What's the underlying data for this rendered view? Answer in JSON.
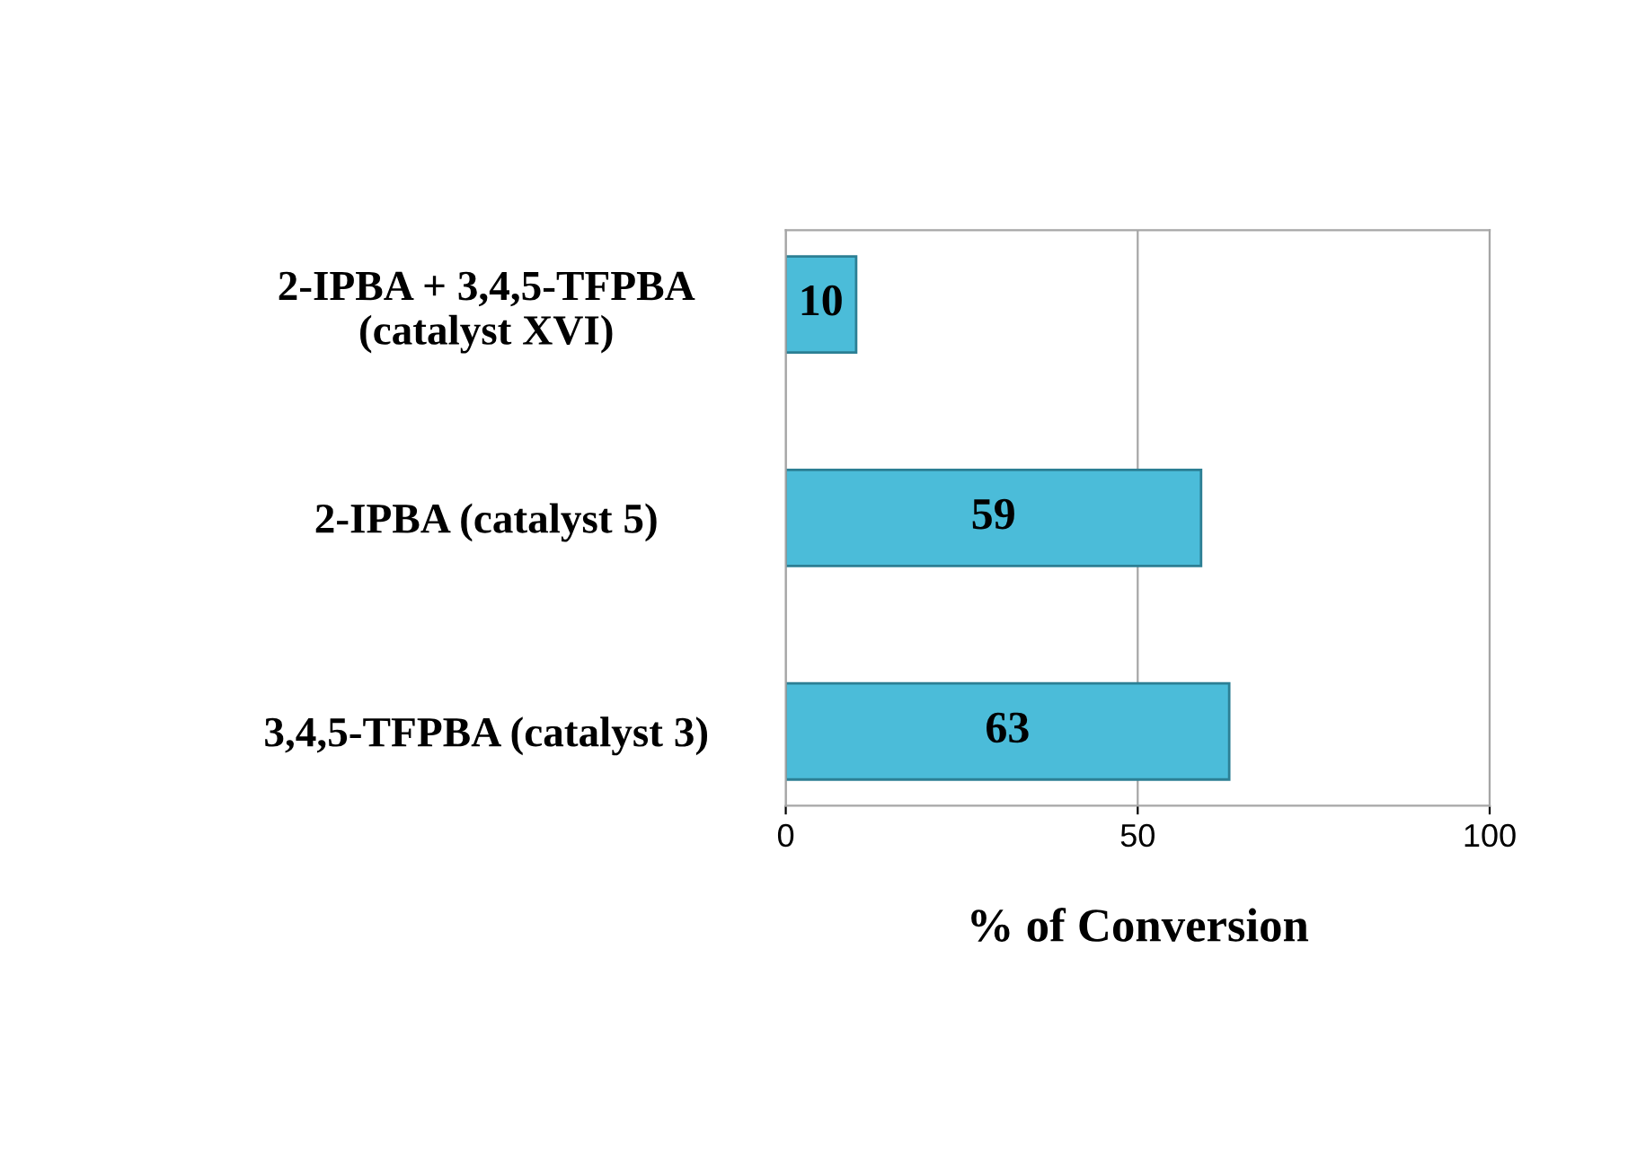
{
  "chart_data": {
    "type": "bar",
    "orientation": "horizontal",
    "categories": [
      "2-IPBA + 3,4,5-TFPBA\n(catalyst XVI)",
      "2-IPBA (catalyst 5)",
      "3,4,5-TFPBA (catalyst 3)"
    ],
    "values": [
      10,
      59,
      63
    ],
    "color": "#4bbcd9",
    "xlim": [
      0,
      100
    ],
    "xticks": [
      0,
      50,
      100
    ],
    "xlabel": "% of Conversion",
    "grid": "x",
    "data_labels": true
  }
}
